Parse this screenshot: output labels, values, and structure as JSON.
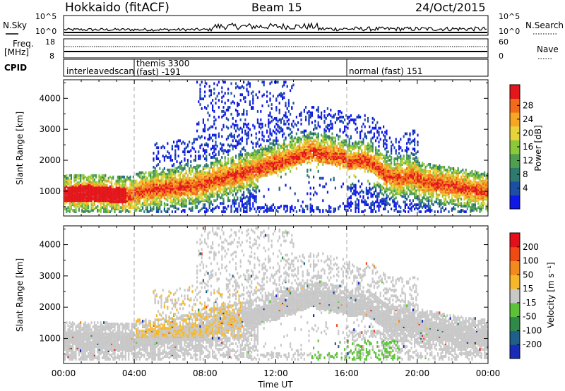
{
  "header": {
    "station": "Hokkaido (fitACF)",
    "beam": "Beam 15",
    "date": "24/Oct/2015"
  },
  "nsky_panel": {
    "left_label": "N.Sky",
    "right_label": "N.Search",
    "ticks_left": [
      "10^5",
      "10^0"
    ],
    "ticks_right": [
      "10^5",
      "10^0"
    ]
  },
  "freq_panel": {
    "left_label_1": "Freq.",
    "left_label_2": "[MHz]",
    "ticks_left": [
      "18",
      "8"
    ],
    "ticks_right": [
      "60",
      "0"
    ],
    "right_label": "Nave"
  },
  "cpid_panel": {
    "label": "CPID",
    "segments": [
      {
        "name": "interleavedscan",
        "start_hour": 0
      },
      {
        "name": "themis 3300",
        "name2": "(fast) -191",
        "start_hour": 4
      },
      {
        "name": "normal (fast) 151",
        "start_hour": 16
      }
    ]
  },
  "chart_data": [
    {
      "type": "heatmap",
      "title": "",
      "xlabel": "Time UT",
      "ylabel": "Slant Range [km]",
      "x_tick_labels": [
        "00:00",
        "04:00",
        "08:00",
        "12:00",
        "16:00",
        "20:00",
        "00:00"
      ],
      "x_ticks_hours": [
        0,
        4,
        8,
        12,
        16,
        20,
        24
      ],
      "xlim_hours": [
        0,
        24
      ],
      "y_ticks": [
        1000,
        2000,
        3000,
        4000
      ],
      "ylim": [
        200,
        4600
      ],
      "colorbar": {
        "label": "Power [dB]",
        "tick_labels": [
          "4",
          "8",
          "12",
          "16",
          "20",
          "24",
          "28"
        ],
        "colors": [
          "#1018e8",
          "#1c4fa3",
          "#2e7a6f",
          "#4f9f4f",
          "#8cc83c",
          "#e7d43a",
          "#f5a623",
          "#f26a1b",
          "#e3161b"
        ]
      }
    },
    {
      "type": "heatmap",
      "title": "",
      "xlabel": "Time UT",
      "ylabel": "Slant Range [km]",
      "x_tick_labels": [
        "00:00",
        "04:00",
        "08:00",
        "12:00",
        "16:00",
        "20:00",
        "00:00"
      ],
      "x_ticks_hours": [
        0,
        4,
        8,
        12,
        16,
        20,
        24
      ],
      "xlim_hours": [
        0,
        24
      ],
      "y_ticks": [
        1000,
        2000,
        3000,
        4000
      ],
      "ylim": [
        200,
        4600
      ],
      "colorbar": {
        "label": "Velocity [m s⁻¹]",
        "tick_labels": [
          "200",
          "100",
          "50",
          "15",
          "-15",
          "-50",
          "-100",
          "-200"
        ],
        "colors": [
          "#1a2bb8",
          "#1f5f8a",
          "#2f8a4a",
          "#5cc23a",
          "#c8c8c8",
          "#f5b82a",
          "#f38a1e",
          "#f04a14",
          "#e3101a"
        ]
      }
    }
  ],
  "colors": {
    "scan_line": "#000000",
    "divider": "#aaaaaa"
  }
}
